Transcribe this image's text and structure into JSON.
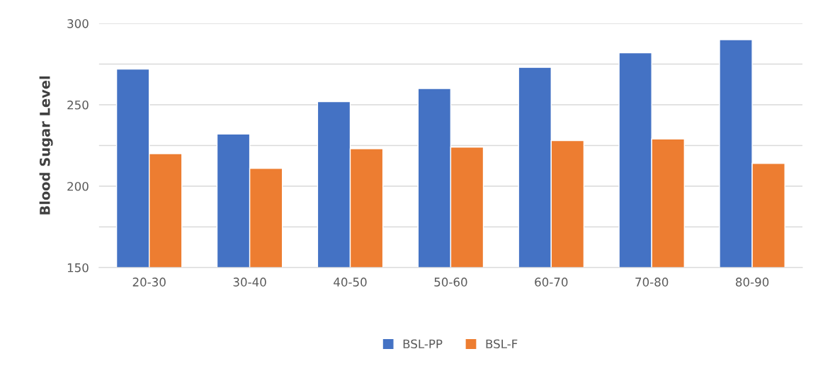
{
  "chart_data": {
    "type": "bar",
    "ylabel": "Blood Sugar Level",
    "categories": [
      "20-30",
      "30-40",
      "40-50",
      "50-60",
      "60-70",
      "70-80",
      "80-90"
    ],
    "series": [
      {
        "name": "BSL-PP",
        "color": "#4472c4",
        "values": [
          272,
          232,
          252,
          260,
          273,
          282,
          290
        ]
      },
      {
        "name": "BSL-F",
        "color": "#ed7d31",
        "values": [
          220,
          211,
          223,
          224,
          228,
          229,
          214
        ]
      }
    ],
    "ylim": [
      150,
      300
    ],
    "yticks": [
      150,
      {
        "value": 175,
        "label": null
      },
      200,
      {
        "value": 225,
        "label": null
      },
      250,
      {
        "value": 275,
        "label": null
      },
      300
    ],
    "grid": "y",
    "legend": "bottom"
  }
}
